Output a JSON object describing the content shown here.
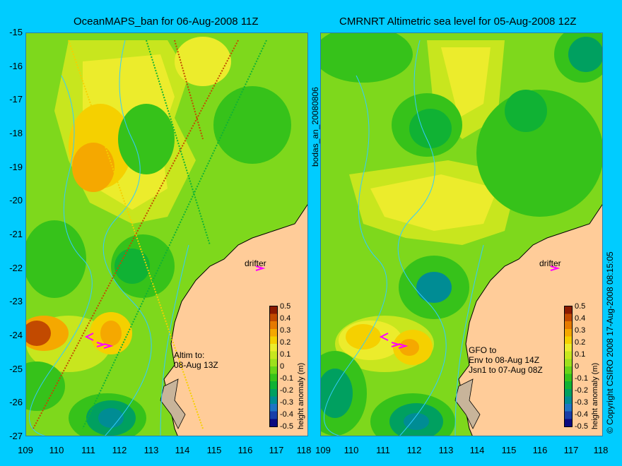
{
  "left_panel": {
    "title": "OceanMAPS_ban for 06-Aug-2008 11Z",
    "annotation_lines": [
      "Altim to:",
      "08-Aug 13Z"
    ],
    "drifter_label": "drifter"
  },
  "right_panel": {
    "title": "CMRNRT Altimetric sea level  for 05-Aug-2008 12Z",
    "annotation_lines": [
      "GFO to",
      "Env to 08-Aug 14Z",
      "Jsn1 to 07-Aug 08Z"
    ],
    "drifter_label": "drifter"
  },
  "side_label": "bodas_an_20080806",
  "copyright": "© Copyright CSIRO 2008  17-Aug-2008 08:15:05",
  "y_ticks": [
    "-15",
    "-16",
    "-17",
    "-18",
    "-19",
    "-20",
    "-21",
    "-22",
    "-23",
    "-24",
    "-25",
    "-26",
    "-27"
  ],
  "x_ticks": [
    "109",
    "110",
    "111",
    "112",
    "113",
    "114",
    "115",
    "116",
    "117",
    "118"
  ],
  "colorbar": {
    "label": "height anomaly (m)",
    "ticks": [
      "0.5",
      "0.4",
      "0.3",
      "0.2",
      "0.1",
      "0",
      "-0.1",
      "-0.2",
      "-0.3",
      "-0.4",
      "-0.5"
    ],
    "colors": [
      "#8b1a00",
      "#c24a00",
      "#e67a00",
      "#f5a800",
      "#f5d000",
      "#ecec2c",
      "#c8e61e",
      "#9ee01c",
      "#68d418",
      "#36c21a",
      "#10b234",
      "#00a060",
      "#008c94",
      "#1f74c4",
      "#1a3ea8",
      "#0a0a80"
    ]
  },
  "colors": {
    "background": "#00ccff",
    "land": "#ffcc99",
    "shelf_land": "#c8b49a",
    "contour": "#33ccff",
    "drifter": "#ff00ff"
  }
}
